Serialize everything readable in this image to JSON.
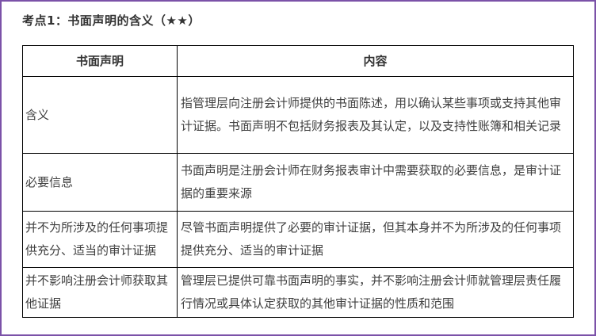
{
  "page": {
    "title": "考点1：书面声明的含义（★★）",
    "border_color": "#7B52A8",
    "table_border_color": "#000000",
    "text_color": "#404040"
  },
  "table": {
    "headers": [
      "书面声明",
      "内容"
    ],
    "rows": [
      {
        "term": "含义",
        "content": "指管理层向注册会计师提供的书面陈述，用以确认某些事项或支持其他审计证据。书面声明不包括财务报表及其认定，以及支持性账簿和相关记录"
      },
      {
        "term": "必要信息",
        "content": "书面声明是注册会计师在财务报表审计中需要获取的必要信息，是审计证据的重要来源"
      },
      {
        "term": "并不为所涉及的任何事项提供充分、适当的审计证据",
        "content": "尽管书面声明提供了必要的审计证据，但其本身并不为所涉及的任何事项提供充分、适当的审计证据"
      },
      {
        "term": "并不影响注册会计师获取其他证据",
        "content": "管理层已提供可靠书面声明的事实，并不影响注册会计师就管理层责任履行情况或具体认定获取的其他审计证据的性质和范围"
      }
    ]
  }
}
